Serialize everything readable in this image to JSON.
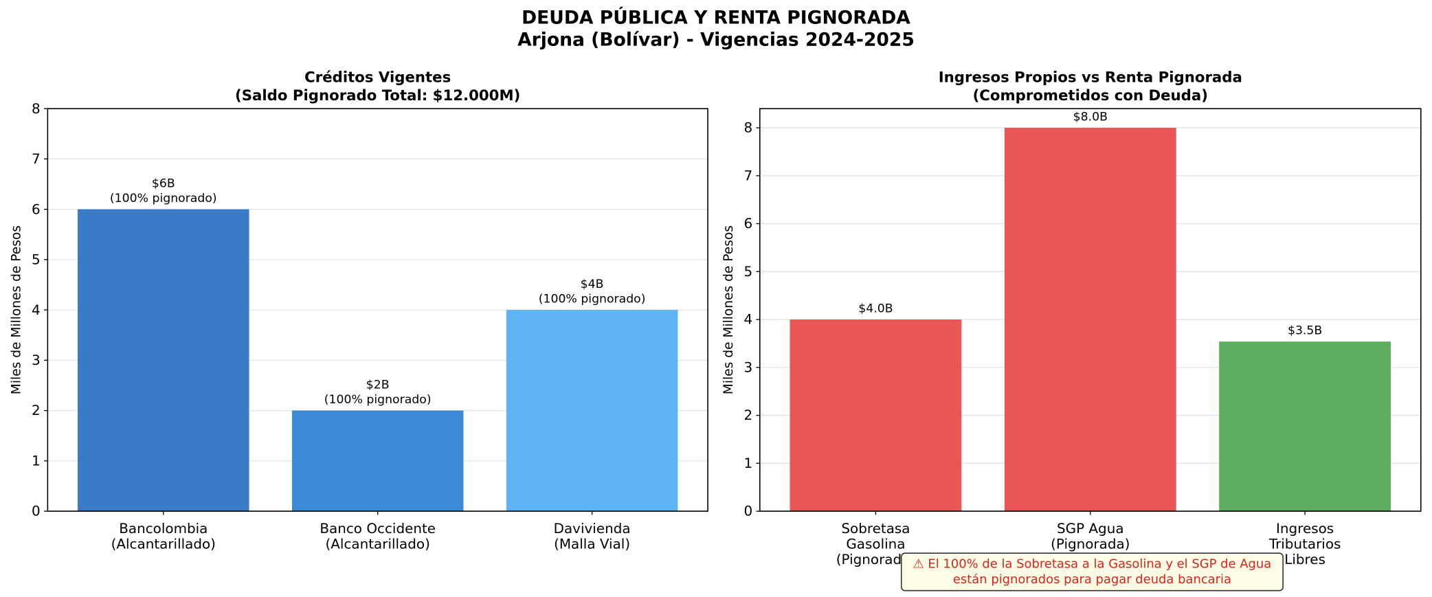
{
  "title": "DEUDA PÚBLICA Y RENTA PIGNORADA",
  "subtitle": "Arjona (Bolívar) - Vigencias 2024-2025",
  "chart_data": [
    {
      "type": "bar",
      "title": "Créditos Vigentes\n(Saldo Pignorado Total: $12.000M)",
      "ylabel": "Miles de Millones de Pesos",
      "categories": [
        "Bancolombia\n(Alcantarillado)",
        "Banco Occidente\n(Alcantarillado)",
        "Davivienda\n(Malla Vial)"
      ],
      "values": [
        6,
        2,
        4
      ],
      "value_labels": [
        "$6B\n(100% pignorado)",
        "$2B\n(100% pignorado)",
        "$4B\n(100% pignorado)"
      ],
      "colors": [
        "#3a7bc8",
        "#3b8ad8",
        "#5eb3f5"
      ],
      "ylim": [
        0,
        8
      ],
      "yticks": [
        0,
        1,
        2,
        3,
        4,
        5,
        6,
        7,
        8
      ],
      "grid": true
    },
    {
      "type": "bar",
      "title": "Ingresos Propios vs Renta Pignorada\n(Comprometidos con Deuda)",
      "ylabel": "Miles de Millones de Pesos",
      "categories": [
        "Sobretasa\nGasolina\n(Pignorada)",
        "SGP Agua\n(Pignorada)",
        "Ingresos\nTributarios\nLibres"
      ],
      "values": [
        4,
        8,
        3.54
      ],
      "value_labels": [
        "$4.0B",
        "$8.0B",
        "$3.5B"
      ],
      "colors": [
        "#e85755",
        "#e85755",
        "#5fad60"
      ],
      "ylim": [
        0,
        8.4
      ],
      "yticks": [
        0,
        1,
        2,
        3,
        4,
        5,
        6,
        7,
        8
      ],
      "grid": true,
      "annotation": "⚠ El 100% de la Sobretasa a la Gasolina y el SGP de Agua\nestán pignorados para pagar deuda bancaria"
    }
  ]
}
